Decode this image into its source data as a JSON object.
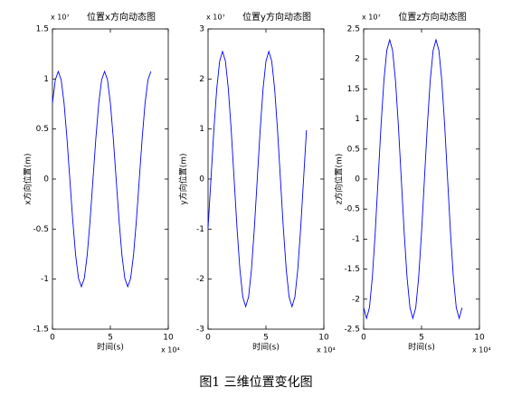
{
  "chart_data": [
    {
      "type": "line",
      "title": "位置x方向动态图",
      "x_label": "时间(s)",
      "y_label": "x方向位置(m)",
      "x_multiplier": "x 10⁴",
      "y_multiplier": "x 10⁷",
      "x": [
        0,
        0.25,
        0.5,
        0.75,
        1,
        1.25,
        1.5,
        1.75,
        2,
        2.25,
        2.5,
        2.75,
        3,
        3.25,
        3.5,
        3.75,
        4,
        4.25,
        4.5,
        4.75,
        5,
        5.25,
        5.5,
        5.75,
        6,
        6.25,
        6.5,
        6.75,
        7,
        7.25,
        7.5,
        7.75,
        8,
        8.25,
        8.5
      ],
      "series": [
        {
          "color": "#0000ff",
          "values": [
            0.76,
            0.993,
            1.075,
            0.993,
            0.76,
            0.411,
            0,
            -0.411,
            -0.76,
            -0.993,
            -1.075,
            -0.993,
            -0.76,
            -0.411,
            0,
            0.411,
            0.76,
            0.993,
            1.075,
            0.993,
            0.76,
            0.411,
            0,
            -0.411,
            -0.76,
            -0.993,
            -1.075,
            -0.993,
            -0.76,
            -0.411,
            0,
            0.411,
            0.76,
            0.993,
            1.075
          ]
        }
      ],
      "xlim": [
        0,
        10
      ],
      "xticks": [
        0,
        5,
        10
      ],
      "ylim": [
        -1.5,
        1.5
      ],
      "yticks": [
        -1.5,
        -1,
        -0.5,
        0,
        0.5,
        1,
        1.5
      ]
    },
    {
      "type": "line",
      "title": "位置y方向动态图",
      "x_label": "时间(s)",
      "y_label": "y方向位置(m)",
      "x_multiplier": "x 10⁴",
      "y_multiplier": "x 10⁷",
      "x": [
        0,
        0.25,
        0.5,
        0.75,
        1,
        1.25,
        1.5,
        1.75,
        2,
        2.25,
        2.5,
        2.75,
        3,
        3.25,
        3.5,
        3.75,
        4,
        4.25,
        4.5,
        4.75,
        5,
        5.25,
        5.5,
        5.75,
        6,
        6.25,
        6.5,
        6.75,
        7,
        7.25,
        7.5,
        7.75,
        8,
        8.25,
        8.5
      ],
      "series": [
        {
          "color": "#0000ff",
          "values": [
            -0.977,
            0,
            0.977,
            1.803,
            2.356,
            2.55,
            2.356,
            1.803,
            0.977,
            0,
            -0.977,
            -1.803,
            -2.356,
            -2.55,
            -2.356,
            -1.803,
            -0.977,
            0,
            0.977,
            1.803,
            2.356,
            2.55,
            2.356,
            1.803,
            0.977,
            0,
            -0.977,
            -1.803,
            -2.356,
            -2.55,
            -2.356,
            -1.803,
            -0.977,
            0,
            0.977
          ]
        }
      ],
      "xlim": [
        0,
        10
      ],
      "xticks": [
        0,
        5,
        10
      ],
      "ylim": [
        -3,
        3
      ],
      "yticks": [
        -3,
        -2,
        -1,
        0,
        1,
        2,
        3
      ]
    },
    {
      "type": "line",
      "title": "位置z方向动态图",
      "x_label": "时间(s)",
      "y_label": "z方向位置(m)",
      "x_multiplier": "x 10⁴",
      "y_multiplier": "x 10⁷",
      "x": [
        0,
        0.25,
        0.5,
        0.75,
        1,
        1.25,
        1.5,
        1.75,
        2,
        2.25,
        2.5,
        2.75,
        3,
        3.25,
        3.5,
        3.75,
        4,
        4.25,
        4.5,
        4.75,
        5,
        5.25,
        5.5,
        5.75,
        6,
        6.25,
        6.5,
        6.75,
        7,
        7.25,
        7.5,
        7.75,
        8,
        8.25,
        8.5
      ],
      "series": [
        {
          "color": "#0000ff",
          "values": [
            -2.143,
            -2.32,
            -2.143,
            -1.64,
            -0.889,
            0,
            0.889,
            1.64,
            2.143,
            2.32,
            2.143,
            1.64,
            0.889,
            0,
            -0.889,
            -1.64,
            -2.143,
            -2.32,
            -2.143,
            -1.64,
            -0.889,
            0,
            0.889,
            1.64,
            2.143,
            2.32,
            2.143,
            1.64,
            0.889,
            0,
            -0.889,
            -1.64,
            -2.143,
            -2.32,
            -2.143
          ]
        }
      ],
      "xlim": [
        0,
        10
      ],
      "xticks": [
        0,
        5,
        10
      ],
      "ylim": [
        -2.5,
        2.5
      ],
      "yticks": [
        -2.5,
        -2,
        -1.5,
        -1,
        -0.5,
        0,
        0.5,
        1,
        1.5,
        2,
        2.5
      ]
    }
  ],
  "caption": "图1  三维位置变化图"
}
